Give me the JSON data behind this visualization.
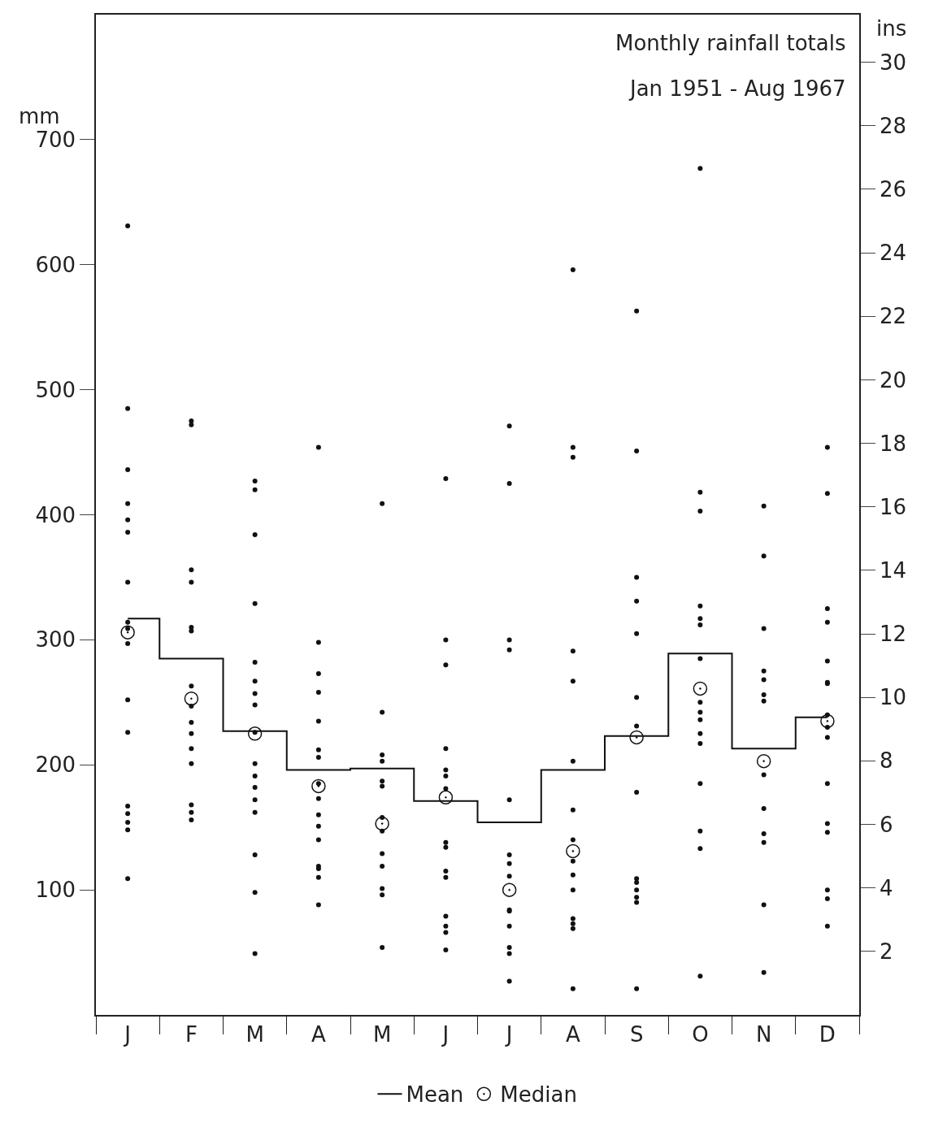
{
  "chart_data": {
    "type": "scatter",
    "title": "Monthly rainfall totals",
    "subtitle": "Jan 1951 - Aug 1967",
    "ylabel": "mm",
    "y2label": "ins",
    "categories": [
      "J",
      "F",
      "M",
      "A",
      "M",
      "J",
      "J",
      "A",
      "S",
      "O",
      "N",
      "D"
    ],
    "ylim": [
      0,
      800
    ],
    "yticks": [
      100,
      200,
      300,
      400,
      500,
      600,
      700
    ],
    "y2lim": [
      0,
      31.5
    ],
    "y2ticks": [
      2,
      4,
      6,
      8,
      10,
      12,
      14,
      16,
      18,
      20,
      22,
      24,
      26,
      28,
      30
    ],
    "grid": false,
    "legend": "bottom",
    "series": [
      {
        "marker": "circle",
        "color": "#111111",
        "values": [
          631,
          475,
          420,
          454,
          409,
          429,
          471,
          596,
          563,
          677,
          407,
          454
        ]
      },
      {
        "marker": "circle",
        "color": "#111111",
        "values": [
          485,
          472,
          427,
          298,
          242,
          300,
          425,
          454,
          451,
          418,
          367,
          417
        ]
      },
      {
        "marker": "circle",
        "color": "#111111",
        "values": [
          436,
          356,
          384,
          273,
          208,
          280,
          300,
          446,
          350,
          403,
          309,
          325
        ]
      },
      {
        "marker": "circle",
        "color": "#111111",
        "values": [
          409,
          346,
          329,
          258,
          203,
          213,
          292,
          291,
          331,
          327,
          275,
          314
        ]
      },
      {
        "marker": "circle",
        "color": "#111111",
        "values": [
          396,
          310,
          282,
          235,
          187,
          196,
          172,
          267,
          305,
          317,
          268,
          283
        ]
      },
      {
        "marker": "circle",
        "color": "#111111",
        "values": [
          386,
          307,
          267,
          212,
          183,
          191,
          128,
          203,
          254,
          312,
          256,
          266
        ]
      },
      {
        "marker": "circle",
        "color": "#111111",
        "values": [
          346,
          263,
          257,
          206,
          158,
          181,
          121,
          164,
          231,
          285,
          251,
          265
        ]
      },
      {
        "marker": "circle",
        "color": "#111111",
        "values": [
          314,
          247,
          248,
          185,
          147,
          138,
          111,
          140,
          178,
          250,
          192,
          240
        ]
      },
      {
        "marker": "circle",
        "color": "#111111",
        "values": [
          309,
          234,
          226,
          173,
          129,
          134,
          84,
          123,
          109,
          242,
          165,
          230
        ]
      },
      {
        "marker": "circle",
        "color": "#111111",
        "values": [
          297,
          225,
          201,
          160,
          119,
          115,
          83,
          112,
          106,
          236,
          145,
          222
        ]
      },
      {
        "marker": "circle",
        "color": "#111111",
        "values": [
          252,
          213,
          191,
          151,
          101,
          110,
          71,
          100,
          100,
          225,
          138,
          185
        ]
      },
      {
        "marker": "circle",
        "color": "#111111",
        "values": [
          226,
          201,
          182,
          140,
          96,
          79,
          54,
          77,
          94,
          217,
          88,
          153
        ]
      },
      {
        "marker": "circle",
        "color": "#111111",
        "values": [
          167,
          168,
          172,
          119,
          54,
          71,
          49,
          73,
          90,
          185,
          34,
          146
        ]
      },
      {
        "marker": "circle",
        "color": "#111111",
        "values": [
          161,
          162,
          162,
          117,
          null,
          66,
          27,
          69,
          21,
          147,
          null,
          100
        ]
      },
      {
        "marker": "circle",
        "color": "#111111",
        "values": [
          154,
          156,
          128,
          110,
          null,
          52,
          null,
          21,
          null,
          133,
          null,
          93
        ]
      },
      {
        "marker": "circle",
        "color": "#111111",
        "values": [
          148,
          null,
          98,
          88,
          null,
          null,
          null,
          null,
          null,
          31,
          null,
          71
        ]
      },
      {
        "marker": "circle",
        "color": "#111111",
        "values": [
          109,
          null,
          49,
          null,
          null,
          null,
          null,
          null,
          null,
          null,
          null,
          null
        ]
      },
      {
        "type": "step",
        "name": "Mean",
        "color": "#111111",
        "line_style": "solid",
        "values": [
          317,
          285,
          227,
          196,
          197,
          171,
          154,
          196,
          223,
          289,
          213,
          238
        ]
      },
      {
        "type": "scatter",
        "name": "Median",
        "marker": "circle",
        "color": "#111111",
        "values": [
          306,
          253,
          225,
          183,
          153,
          174,
          100,
          131,
          222,
          261,
          203,
          235
        ]
      }
    ]
  }
}
